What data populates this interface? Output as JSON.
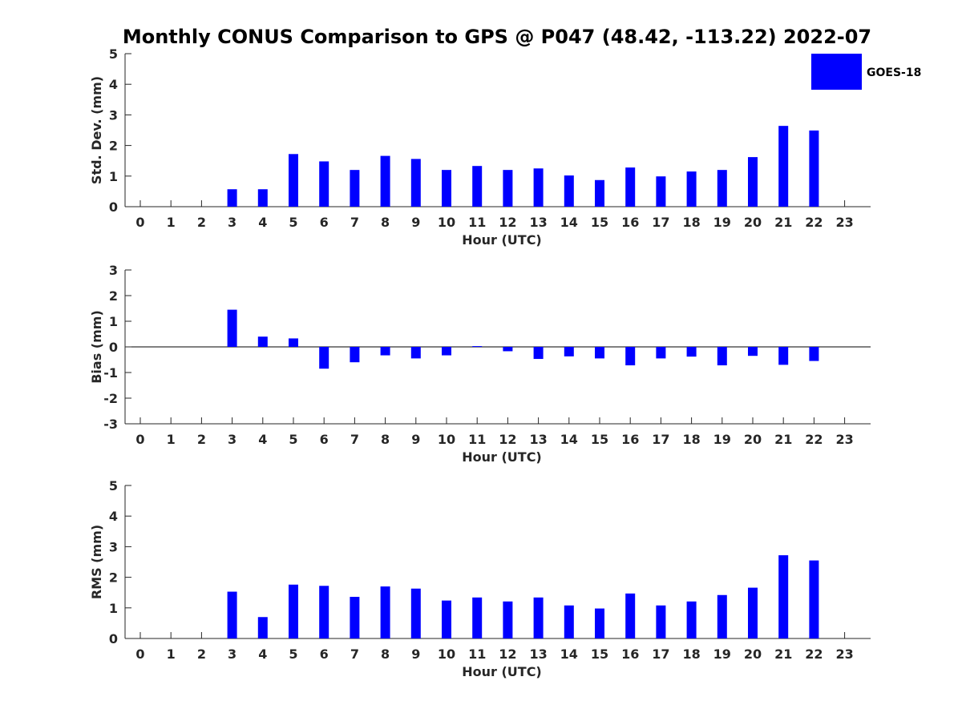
{
  "chart_data": {
    "title": "Monthly CONUS Comparison to GPS @ P047 (48.42, -113.22) 2022-07",
    "legend": {
      "label": "GOES-18",
      "color": "#0000ff",
      "position": "top-right"
    },
    "charts": [
      {
        "type": "bar",
        "name": "std-dev",
        "ylabel": "Std. Dev. (mm)",
        "xlabel": "Hour (UTC)",
        "categories": [
          0,
          1,
          2,
          3,
          4,
          5,
          6,
          7,
          8,
          9,
          10,
          11,
          12,
          13,
          14,
          15,
          16,
          17,
          18,
          19,
          20,
          21,
          22,
          23
        ],
        "values": [
          null,
          null,
          null,
          0.57,
          0.57,
          1.72,
          1.48,
          1.2,
          1.66,
          1.56,
          1.2,
          1.33,
          1.2,
          1.25,
          1.02,
          0.87,
          1.28,
          0.99,
          1.15,
          1.2,
          1.62,
          2.64,
          2.49,
          null
        ],
        "ylim": [
          0,
          5
        ],
        "yticks": [
          0,
          1,
          2,
          3,
          4,
          5
        ]
      },
      {
        "type": "bar",
        "name": "bias",
        "ylabel": "Bias (mm)",
        "xlabel": "Hour (UTC)",
        "categories": [
          0,
          1,
          2,
          3,
          4,
          5,
          6,
          7,
          8,
          9,
          10,
          11,
          12,
          13,
          14,
          15,
          16,
          17,
          18,
          19,
          20,
          21,
          22,
          23
        ],
        "values": [
          null,
          null,
          null,
          1.45,
          0.4,
          0.33,
          -0.85,
          -0.6,
          -0.33,
          -0.45,
          -0.33,
          0.03,
          -0.17,
          -0.47,
          -0.37,
          -0.45,
          -0.72,
          -0.45,
          -0.38,
          -0.72,
          -0.35,
          -0.7,
          -0.55,
          null
        ],
        "ylim": [
          -3,
          3
        ],
        "yticks": [
          -3,
          -2,
          -1,
          0,
          1,
          2,
          3
        ]
      },
      {
        "type": "bar",
        "name": "rms",
        "ylabel": "RMS (mm)",
        "xlabel": "Hour (UTC)",
        "categories": [
          0,
          1,
          2,
          3,
          4,
          5,
          6,
          7,
          8,
          9,
          10,
          11,
          12,
          13,
          14,
          15,
          16,
          17,
          18,
          19,
          20,
          21,
          22,
          23
        ],
        "values": [
          null,
          null,
          null,
          1.53,
          0.7,
          1.76,
          1.72,
          1.36,
          1.7,
          1.63,
          1.24,
          1.34,
          1.21,
          1.34,
          1.08,
          0.98,
          1.47,
          1.08,
          1.21,
          1.42,
          1.66,
          2.72,
          2.55,
          null
        ],
        "ylim": [
          0,
          5
        ],
        "yticks": [
          0,
          1,
          2,
          3,
          4,
          5
        ]
      }
    ]
  }
}
